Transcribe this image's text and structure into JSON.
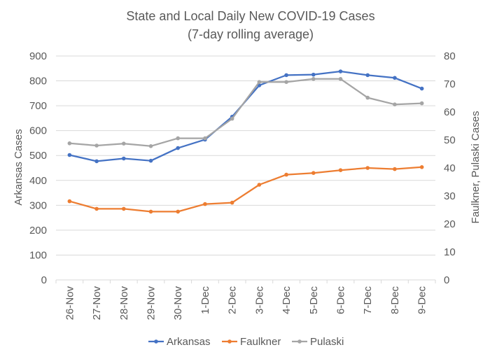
{
  "chart_data": {
    "type": "line",
    "title": "State and Local Daily New COVID-19 Cases",
    "subtitle": "(7-day rolling average)",
    "ylabel": "Arkansas Cases",
    "y2label": "Faulkner, Pulaski Cases",
    "xlabel": "",
    "ylim": [
      0,
      900
    ],
    "y2lim": [
      0,
      80
    ],
    "yticks": [
      "0",
      "100",
      "200",
      "300",
      "400",
      "500",
      "600",
      "700",
      "800",
      "900"
    ],
    "y2ticks": [
      "0",
      "10",
      "20",
      "30",
      "40",
      "50",
      "60",
      "70",
      "80"
    ],
    "categories": [
      "26-Nov",
      "27-Nov",
      "28-Nov",
      "29-Nov",
      "30-Nov",
      "1-Dec",
      "2-Dec",
      "3-Dec",
      "4-Dec",
      "5-Dec",
      "6-Dec",
      "7-Dec",
      "8-Dec",
      "9-Dec"
    ],
    "grid": true,
    "legend_position": "bottom",
    "series": [
      {
        "name": "Arkansas",
        "axis": "left",
        "color": "#4472C4",
        "values": [
          502,
          477,
          488,
          479,
          530,
          564,
          656,
          782,
          823,
          825,
          838,
          823,
          812,
          769
        ]
      },
      {
        "name": "Faulkner",
        "axis": "right",
        "color": "#ED7D31",
        "values": [
          28.1,
          25.4,
          25.4,
          24.4,
          24.4,
          27.1,
          27.6,
          34.0,
          37.6,
          38.2,
          39.2,
          40.0,
          39.6,
          40.3
        ]
      },
      {
        "name": "Pulaski",
        "axis": "right",
        "color": "#A5A5A5",
        "values": [
          48.8,
          48.0,
          48.7,
          47.8,
          50.6,
          50.6,
          57.6,
          70.7,
          70.7,
          71.8,
          71.8,
          65.1,
          62.7,
          63.1
        ]
      }
    ]
  }
}
